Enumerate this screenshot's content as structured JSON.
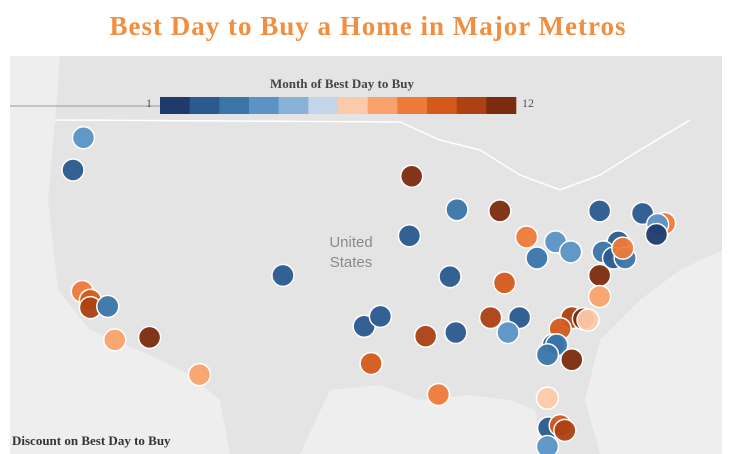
{
  "title": "Best Day to Buy a Home in Major Metros",
  "map_label_lines": [
    "United",
    "States"
  ],
  "color_legend": {
    "title": "Month of Best Day to Buy",
    "min": 1,
    "max": 12,
    "colors": [
      "#1f3b6b",
      "#2a5a8f",
      "#3a75aa",
      "#5b93c6",
      "#89b2d8",
      "#c3d5e8",
      "#fdcaa9",
      "#f9a26c",
      "#ee7a3a",
      "#d45a1c",
      "#ac4113",
      "#7b2b0e"
    ]
  },
  "size_legend": {
    "title": "Discount on Best Day to Buy"
  },
  "metros": [
    {
      "lon": -121.1,
      "lat": 50.2,
      "month": 4
    },
    {
      "lon": -122.0,
      "lat": 47.6,
      "month": 2
    },
    {
      "lon": -121.2,
      "lat": 37.8,
      "month": 9
    },
    {
      "lon": -120.5,
      "lat": 37.1,
      "month": 10
    },
    {
      "lon": -120.5,
      "lat": 36.5,
      "month": 11
    },
    {
      "lon": -119.0,
      "lat": 36.6,
      "month": 3
    },
    {
      "lon": -118.4,
      "lat": 33.9,
      "month": 8
    },
    {
      "lon": -115.4,
      "lat": 34.1,
      "month": 12
    },
    {
      "lon": -111.1,
      "lat": 31.1,
      "month": 8
    },
    {
      "lon": -103.9,
      "lat": 39.1,
      "month": 2
    },
    {
      "lon": -92.8,
      "lat": 47.1,
      "month": 12
    },
    {
      "lon": -93.0,
      "lat": 42.3,
      "month": 2
    },
    {
      "lon": -88.9,
      "lat": 44.4,
      "month": 3
    },
    {
      "lon": -85.2,
      "lat": 44.3,
      "month": 12
    },
    {
      "lon": -89.5,
      "lat": 39.0,
      "month": 2
    },
    {
      "lon": -84.8,
      "lat": 38.5,
      "month": 10
    },
    {
      "lon": -82.9,
      "lat": 42.2,
      "month": 9
    },
    {
      "lon": -80.4,
      "lat": 41.8,
      "month": 4
    },
    {
      "lon": -82.0,
      "lat": 40.5,
      "month": 3
    },
    {
      "lon": -79.1,
      "lat": 41.0,
      "month": 4
    },
    {
      "lon": -76.6,
      "lat": 44.3,
      "month": 2
    },
    {
      "lon": -72.9,
      "lat": 44.1,
      "month": 2
    },
    {
      "lon": -71.0,
      "lat": 43.3,
      "month": 9
    },
    {
      "lon": -71.6,
      "lat": 43.2,
      "month": 4
    },
    {
      "lon": -71.7,
      "lat": 42.4,
      "month": 1
    },
    {
      "lon": -75.0,
      "lat": 41.8,
      "month": 2
    },
    {
      "lon": -76.3,
      "lat": 41.0,
      "month": 3
    },
    {
      "lon": -75.4,
      "lat": 40.5,
      "month": 2
    },
    {
      "lon": -74.4,
      "lat": 40.5,
      "month": 3
    },
    {
      "lon": -74.6,
      "lat": 41.3,
      "month": 9
    },
    {
      "lon": -76.6,
      "lat": 39.1,
      "month": 12
    },
    {
      "lon": -76.6,
      "lat": 37.4,
      "month": 8
    },
    {
      "lon": -96.9,
      "lat": 35.0,
      "month": 2
    },
    {
      "lon": -95.5,
      "lat": 35.8,
      "month": 2
    },
    {
      "lon": -91.6,
      "lat": 34.2,
      "month": 11
    },
    {
      "lon": -89.0,
      "lat": 34.5,
      "month": 2
    },
    {
      "lon": -86.0,
      "lat": 35.7,
      "month": 11
    },
    {
      "lon": -83.5,
      "lat": 35.7,
      "month": 2
    },
    {
      "lon": -84.5,
      "lat": 34.5,
      "month": 4
    },
    {
      "lon": -79.0,
      "lat": 35.7,
      "month": 11
    },
    {
      "lon": -78.0,
      "lat": 35.6,
      "month": 12
    },
    {
      "lon": -77.6,
      "lat": 35.5,
      "month": 7
    },
    {
      "lon": -80.0,
      "lat": 34.8,
      "month": 10
    },
    {
      "lon": -80.6,
      "lat": 33.5,
      "month": 2
    },
    {
      "lon": -80.3,
      "lat": 33.5,
      "month": 3
    },
    {
      "lon": -81.1,
      "lat": 32.7,
      "month": 3
    },
    {
      "lon": -79.0,
      "lat": 32.3,
      "month": 12
    },
    {
      "lon": -96.3,
      "lat": 32.0,
      "month": 10
    },
    {
      "lon": -90.5,
      "lat": 29.5,
      "month": 9
    },
    {
      "lon": -81.1,
      "lat": 29.2,
      "month": 7
    },
    {
      "lon": -81.0,
      "lat": 26.8,
      "month": 2
    },
    {
      "lon": -80.0,
      "lat": 27.0,
      "month": 10
    },
    {
      "lon": -79.6,
      "lat": 26.6,
      "month": 11
    },
    {
      "lon": -81.1,
      "lat": 25.3,
      "month": 4
    }
  ]
}
